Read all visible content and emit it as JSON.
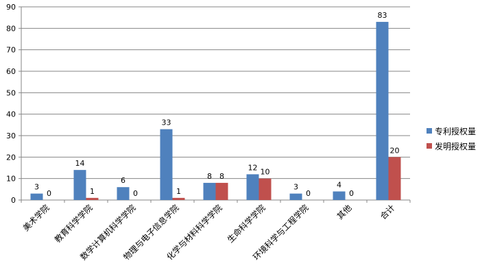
{
  "chart_data": {
    "type": "bar",
    "title": "",
    "xlabel": "",
    "ylabel": "",
    "ylim": [
      0,
      90
    ],
    "yticks": [
      0,
      10,
      20,
      30,
      40,
      50,
      60,
      70,
      80,
      90
    ],
    "grid": true,
    "legend_position": "right",
    "categories": [
      "美术学院",
      "教育科学学院",
      "数学计算机科学学院",
      "物理与电子信息学院",
      "化学与材料科学学院",
      "生命科学学院",
      "环境科学与工程学院",
      "其他",
      "合计"
    ],
    "series": [
      {
        "name": "专利授权量",
        "color": "#4F81BD",
        "values": [
          3,
          14,
          6,
          33,
          8,
          12,
          3,
          4,
          83
        ]
      },
      {
        "name": "发明授权量",
        "color": "#C0504D",
        "values": [
          0,
          1,
          0,
          1,
          8,
          10,
          0,
          0,
          20
        ]
      }
    ]
  }
}
